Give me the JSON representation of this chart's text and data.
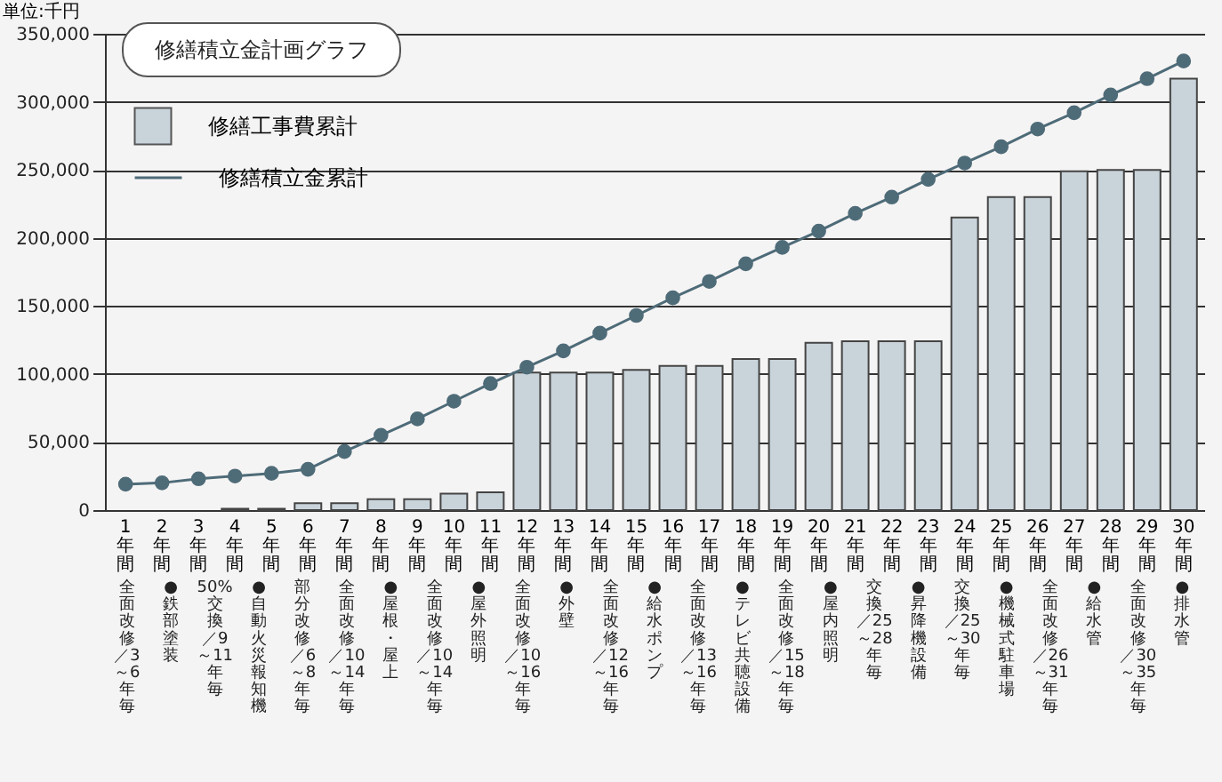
{
  "chart_data": {
    "type": "bar",
    "title": "修繕積立金計画グラフ",
    "ylabel": "単位:千円",
    "categories": [
      "1年間",
      "2年間",
      "3年間",
      "4年間",
      "5年間",
      "6年間",
      "7年間",
      "8年間",
      "9年間",
      "10年間",
      "11年間",
      "12年間",
      "13年間",
      "14年間",
      "15年間",
      "16年間",
      "17年間",
      "18年間",
      "19年間",
      "20年間",
      "21年間",
      "22年間",
      "23年間",
      "24年間",
      "25年間",
      "26年間",
      "27年間",
      "28年間",
      "29年間",
      "30年間"
    ],
    "series": [
      {
        "name": "修繕工事費累計",
        "color": "#c9d3da",
        "values": [
          0,
          0,
          0,
          1000,
          1000,
          5000,
          5000,
          8000,
          8000,
          12000,
          13000,
          101000,
          101000,
          101000,
          103000,
          106000,
          106000,
          111000,
          111000,
          123000,
          124000,
          124000,
          124000,
          215000,
          230000,
          230000,
          249000,
          250000,
          250000,
          317000
        ]
      },
      {
        "name": "修繕積立金累計",
        "type": "line",
        "color": "#4e6b78",
        "marker": "circle",
        "line_style": "solid",
        "values": [
          19000,
          20000,
          23000,
          25000,
          27000,
          30000,
          43000,
          55000,
          67000,
          80000,
          93000,
          105000,
          117000,
          130000,
          143000,
          156000,
          168000,
          181000,
          193000,
          205000,
          218000,
          230000,
          243000,
          255000,
          267000,
          280000,
          292000,
          305000,
          317000,
          330000
        ]
      }
    ],
    "ylim": [
      0,
      350000
    ],
    "yticks": [
      0,
      {
        "value": 50000,
        "label": "50,000"
      },
      {
        "value": 100000,
        "label": "100,000"
      },
      {
        "value": 150000,
        "label": "150,000"
      },
      {
        "value": 200000,
        "label": "200,000"
      },
      {
        "value": 250000,
        "label": "250,000"
      },
      {
        "value": 300000,
        "label": "300,000"
      },
      {
        "value": 350000,
        "label": "350,000"
      }
    ],
    "grid": "y",
    "legend": "top left",
    "annotations": [
      "全面改修／3～6年毎",
      "●鉄部塗装",
      "50%交換／9～11年毎",
      "●自動火災報知機",
      "部分改修／6～8年毎",
      "全面改修／10～14年毎",
      "●屋根・屋上",
      "全面改修／10～14年毎",
      "●屋外照明",
      "全面改修／10～16年毎",
      "●外壁",
      "全面改修／12～16年毎",
      "●給水ポンプ",
      "全面改修／13～16年毎",
      "●テレビ共聴設備",
      "全面改修／15～18年毎",
      "●屋内照明",
      "交換／25～28年毎",
      "●昇降機設備",
      "交換／25～30年毎",
      "●機械式駐車場",
      "全面改修／26～31年毎",
      "●給水管",
      "全面改修／30～35年毎",
      "●排水管"
    ]
  }
}
